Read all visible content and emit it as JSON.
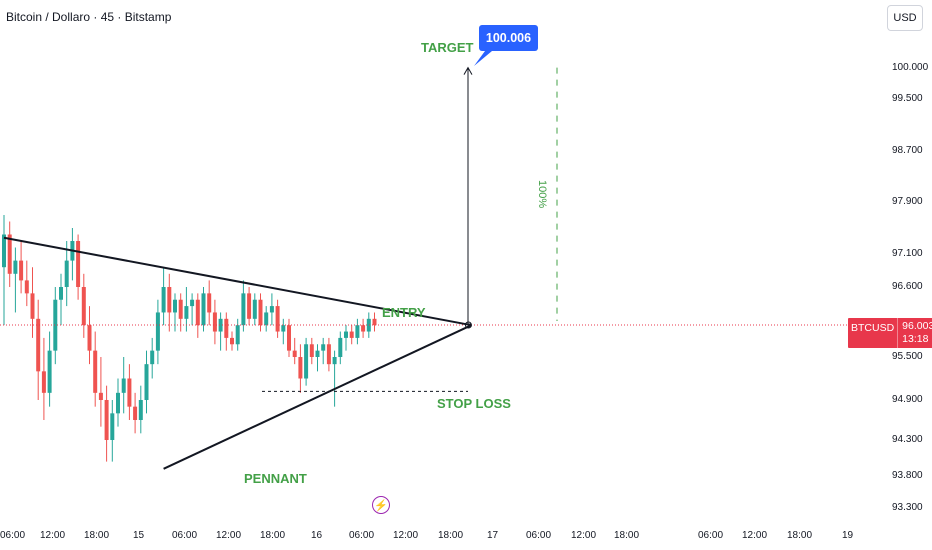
{
  "header": {
    "title": "Bitcoin / Dollaro · 45 · Bitstamp",
    "currency_button": "USD"
  },
  "price_tag": {
    "symbol": "BTCUSD",
    "price": "96.003",
    "countdown": "13:18"
  },
  "annotations": {
    "target_label": "TARGET",
    "target_value": "100.006",
    "entry_label": "ENTRY",
    "stop_loss_label": "STOP LOSS",
    "pattern_label": "PENNANT",
    "move_percent": "100%"
  },
  "colors": {
    "up": "#26a69a",
    "down": "#ef5350",
    "annotation_green": "#43a047",
    "target_blue": "#2962ff",
    "price_red": "#e8374b"
  },
  "chart_data": {
    "type": "candlestick",
    "y_ticks": [
      "100.000",
      "99.500",
      "98.700",
      "97.900",
      "97.100",
      "96.600",
      "95.500",
      "94.900",
      "94.300",
      "93.800",
      "93.300"
    ],
    "x_ticks": [
      "06:00",
      "12:00",
      "18:00",
      "15",
      "06:00",
      "12:00",
      "18:00",
      "16",
      "06:00",
      "12:00",
      "18:00",
      "17",
      "06:00",
      "12:00",
      "18:00",
      "06:00",
      "12:00",
      "18:00",
      "19"
    ],
    "current_price": 96.003,
    "target": 100.006,
    "stop_loss": 95.02,
    "pennant_upper_line": [
      [
        0,
        97.35
      ],
      [
        82,
        96.0
      ]
    ],
    "pennant_lower_line": [
      [
        28,
        93.9
      ],
      [
        82,
        96.0
      ]
    ],
    "candles": [
      [
        96.9,
        97.7,
        96.0,
        97.4
      ],
      [
        97.4,
        97.6,
        96.6,
        96.8
      ],
      [
        96.8,
        97.2,
        96.2,
        97.0
      ],
      [
        97.0,
        97.3,
        96.5,
        96.7
      ],
      [
        96.7,
        97.0,
        96.3,
        96.5
      ],
      [
        96.5,
        96.9,
        95.8,
        96.1
      ],
      [
        96.1,
        96.4,
        94.9,
        95.3
      ],
      [
        95.3,
        95.8,
        94.6,
        95.0
      ],
      [
        95.0,
        95.9,
        94.8,
        95.6
      ],
      [
        95.6,
        96.6,
        95.4,
        96.4
      ],
      [
        96.4,
        96.8,
        96.0,
        96.6
      ],
      [
        96.6,
        97.3,
        96.3,
        97.0
      ],
      [
        97.0,
        97.5,
        96.7,
        97.3
      ],
      [
        97.3,
        97.4,
        96.4,
        96.6
      ],
      [
        96.6,
        96.8,
        95.8,
        96.0
      ],
      [
        96.0,
        96.3,
        95.4,
        95.6
      ],
      [
        95.6,
        95.9,
        94.8,
        95.0
      ],
      [
        95.0,
        95.5,
        94.5,
        94.9
      ],
      [
        94.9,
        95.1,
        94.0,
        94.3
      ],
      [
        94.3,
        94.9,
        94.0,
        94.7
      ],
      [
        94.7,
        95.2,
        94.5,
        95.0
      ],
      [
        95.0,
        95.5,
        94.7,
        95.2
      ],
      [
        95.2,
        95.4,
        94.6,
        94.8
      ],
      [
        94.8,
        95.0,
        94.4,
        94.6
      ],
      [
        94.6,
        95.1,
        94.4,
        94.9
      ],
      [
        94.9,
        95.6,
        94.7,
        95.4
      ],
      [
        95.4,
        95.8,
        95.2,
        95.6
      ],
      [
        95.6,
        96.4,
        95.4,
        96.2
      ],
      [
        96.2,
        96.9,
        96.0,
        96.6
      ],
      [
        96.6,
        96.8,
        95.9,
        96.2
      ],
      [
        96.2,
        96.5,
        95.9,
        96.4
      ],
      [
        96.4,
        96.5,
        95.9,
        96.1
      ],
      [
        96.1,
        96.6,
        95.9,
        96.3
      ],
      [
        96.3,
        96.5,
        96.0,
        96.4
      ],
      [
        96.4,
        96.5,
        95.8,
        96.0
      ],
      [
        96.0,
        96.6,
        95.9,
        96.5
      ],
      [
        96.5,
        96.7,
        96.0,
        96.2
      ],
      [
        96.2,
        96.4,
        95.7,
        95.9
      ],
      [
        95.9,
        96.2,
        95.6,
        96.1
      ],
      [
        96.1,
        96.2,
        95.6,
        95.8
      ],
      [
        95.8,
        95.9,
        95.6,
        95.7
      ],
      [
        95.7,
        96.1,
        95.6,
        96.0
      ],
      [
        96.0,
        96.7,
        95.9,
        96.5
      ],
      [
        96.5,
        96.6,
        96.0,
        96.1
      ],
      [
        96.1,
        96.5,
        96.0,
        96.4
      ],
      [
        96.4,
        96.5,
        95.9,
        96.0
      ],
      [
        96.0,
        96.3,
        95.9,
        96.2
      ],
      [
        96.2,
        96.5,
        96.0,
        96.3
      ],
      [
        96.3,
        96.4,
        95.8,
        95.9
      ],
      [
        95.9,
        96.1,
        95.7,
        96.0
      ],
      [
        96.0,
        96.1,
        95.5,
        95.6
      ],
      [
        95.6,
        95.8,
        95.4,
        95.5
      ],
      [
        95.5,
        95.7,
        95.0,
        95.2
      ],
      [
        95.2,
        95.8,
        95.1,
        95.7
      ],
      [
        95.7,
        95.8,
        95.4,
        95.5
      ],
      [
        95.5,
        95.7,
        95.3,
        95.6
      ],
      [
        95.6,
        95.8,
        95.4,
        95.7
      ],
      [
        95.7,
        95.8,
        95.3,
        95.4
      ],
      [
        95.4,
        95.6,
        94.8,
        95.5
      ],
      [
        95.5,
        95.9,
        95.4,
        95.8
      ],
      [
        95.8,
        96.0,
        95.6,
        95.9
      ],
      [
        95.9,
        96.0,
        95.7,
        95.8
      ],
      [
        95.8,
        96.1,
        95.7,
        96.0
      ],
      [
        96.0,
        96.1,
        95.8,
        95.9
      ],
      [
        95.9,
        96.2,
        95.8,
        96.1
      ],
      [
        96.1,
        96.2,
        95.9,
        96.0
      ]
    ]
  }
}
